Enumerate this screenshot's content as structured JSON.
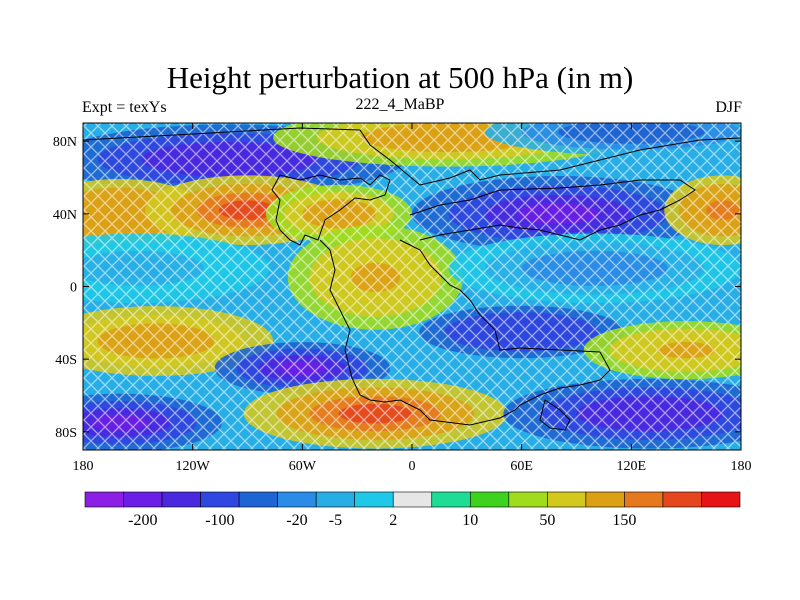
{
  "chart_data": {
    "type": "heatmap",
    "title": "Height perturbation at 500 hPa (in m)",
    "left_string": "Expt = texYs",
    "center_string": "222_4_MaBP",
    "right_string": "DJF",
    "xlim": [
      -180,
      180
    ],
    "ylim": [
      -90,
      90
    ],
    "x_ticks": [
      {
        "value": -180,
        "label": "180"
      },
      {
        "value": -120,
        "label": "120W"
      },
      {
        "value": -60,
        "label": "60W"
      },
      {
        "value": 0,
        "label": "0"
      },
      {
        "value": 60,
        "label": "60E"
      },
      {
        "value": 120,
        "label": "120E"
      },
      {
        "value": 180,
        "label": "180"
      }
    ],
    "y_ticks": [
      {
        "value": 80,
        "label": "80N"
      },
      {
        "value": 40,
        "label": "40N"
      },
      {
        "value": 0,
        "label": "0"
      },
      {
        "value": -40,
        "label": "40S"
      },
      {
        "value": -80,
        "label": "80S"
      }
    ],
    "colorbar": {
      "colors": [
        "#8c1ee6",
        "#6a1ee6",
        "#4a28e0",
        "#2f46e0",
        "#1e64d2",
        "#2a8ce6",
        "#28aee6",
        "#1ec8e6",
        "#e6e6e6",
        "#1edc96",
        "#3cd21e",
        "#a0dc1e",
        "#d2c81e",
        "#dca014",
        "#e6781e",
        "#e6461e",
        "#e61414"
      ],
      "labels": [
        "-200",
        "-100",
        "-20",
        "-5",
        "2",
        "10",
        "50",
        "150"
      ],
      "label_after_box": [
        2,
        4,
        6,
        7,
        8,
        10,
        12,
        14
      ]
    },
    "features": [
      {
        "lon": -100,
        "lat": 70,
        "value": -150,
        "sx": 60,
        "sy": 12
      },
      {
        "lon": 20,
        "lat": 82,
        "value": 80,
        "sx": 60,
        "sy": 10
      },
      {
        "lon": 120,
        "lat": 85,
        "value": -30,
        "sx": 50,
        "sy": 8
      },
      {
        "lon": -160,
        "lat": 40,
        "value": 110,
        "sx": 30,
        "sy": 12
      },
      {
        "lon": -90,
        "lat": 42,
        "value": 170,
        "sx": 35,
        "sy": 12
      },
      {
        "lon": -40,
        "lat": 40,
        "value": 80,
        "sx": 25,
        "sy": 10
      },
      {
        "lon": 80,
        "lat": 40,
        "value": -200,
        "sx": 50,
        "sy": 13
      },
      {
        "lon": 170,
        "lat": 42,
        "value": 130,
        "sx": 20,
        "sy": 12
      },
      {
        "lon": -150,
        "lat": 10,
        "value": -10,
        "sx": 45,
        "sy": 12
      },
      {
        "lon": -20,
        "lat": 5,
        "value": 70,
        "sx": 30,
        "sy": 18
      },
      {
        "lon": 100,
        "lat": 10,
        "value": -15,
        "sx": 50,
        "sy": 12
      },
      {
        "lon": -140,
        "lat": -30,
        "value": 90,
        "sx": 40,
        "sy": 12
      },
      {
        "lon": 60,
        "lat": -25,
        "value": -110,
        "sx": 35,
        "sy": 9
      },
      {
        "lon": 150,
        "lat": -35,
        "value": 60,
        "sx": 35,
        "sy": 10
      },
      {
        "lon": -60,
        "lat": -45,
        "value": -170,
        "sx": 30,
        "sy": 9
      },
      {
        "lon": -160,
        "lat": -75,
        "value": -170,
        "sx": 35,
        "sy": 10
      },
      {
        "lon": -20,
        "lat": -70,
        "value": 190,
        "sx": 45,
        "sy": 12
      },
      {
        "lon": 130,
        "lat": -70,
        "value": -160,
        "sx": 50,
        "sy": 12
      }
    ]
  }
}
